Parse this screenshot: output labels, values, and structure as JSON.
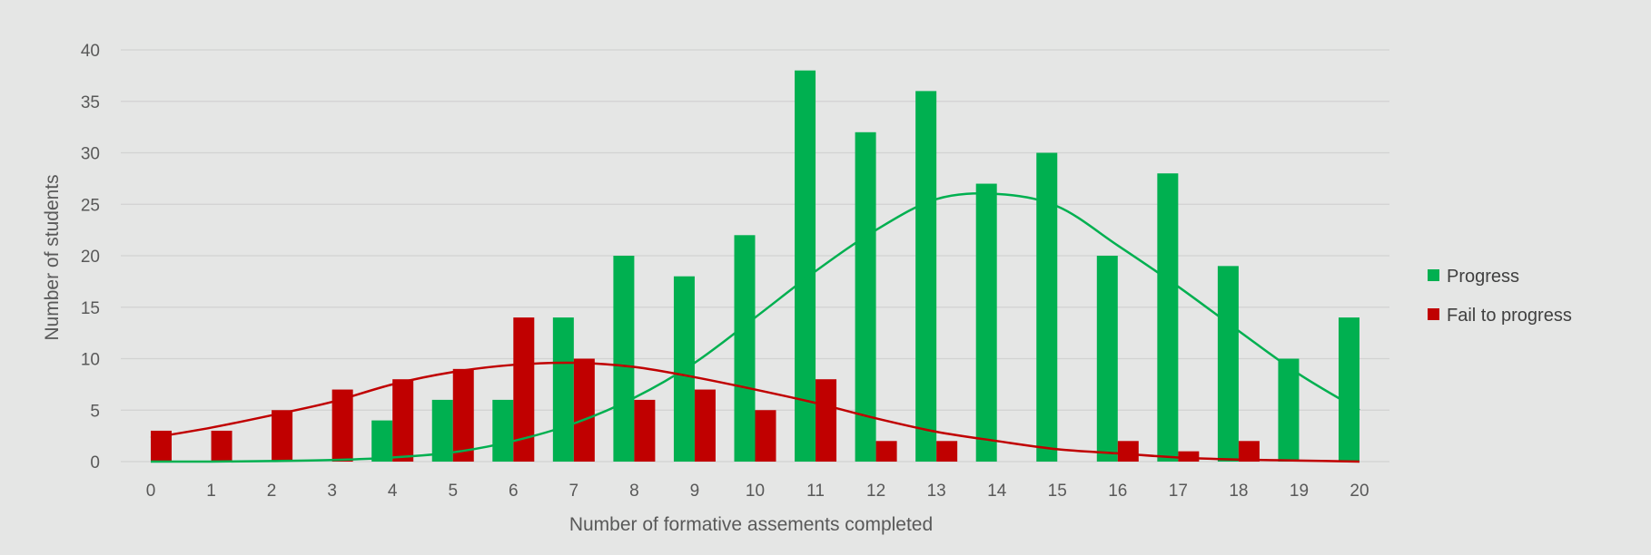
{
  "chart_data": {
    "type": "bar",
    "xlabel": "Number of formative assements completed",
    "ylabel": "Number of students",
    "categories": [
      "0",
      "1",
      "2",
      "3",
      "4",
      "5",
      "6",
      "7",
      "8",
      "9",
      "10",
      "11",
      "12",
      "13",
      "14",
      "15",
      "16",
      "17",
      "18",
      "19",
      "20"
    ],
    "ylim": [
      0,
      40
    ],
    "yticks": [
      0,
      5,
      10,
      15,
      20,
      25,
      30,
      35,
      40
    ],
    "grid": true,
    "legend_position": "right",
    "series": [
      {
        "name": "Progress",
        "color": "#00b050",
        "values": [
          0,
          0,
          0,
          0,
          4,
          6,
          6,
          14,
          20,
          18,
          22,
          38,
          32,
          36,
          27,
          30,
          20,
          28,
          19,
          10,
          14
        ]
      },
      {
        "name": "Fail to progress",
        "color": "#c00000",
        "values": [
          3,
          3,
          5,
          7,
          8,
          9,
          14,
          10,
          6,
          7,
          5,
          8,
          2,
          2,
          0,
          0,
          2,
          1,
          2,
          0,
          0
        ]
      }
    ],
    "trendlines": [
      {
        "series": "Progress",
        "color": "#00b050",
        "values": [
          0,
          0,
          0.05,
          0.15,
          0.4,
          0.9,
          2.0,
          3.7,
          6.2,
          9.6,
          14.0,
          18.5,
          22.5,
          25.5,
          26.0,
          24.8,
          21.0,
          17.0,
          12.7,
          8.5,
          5.0
        ]
      },
      {
        "series": "Fail to progress",
        "color": "#c00000",
        "values": [
          2.3,
          3.3,
          4.5,
          5.8,
          7.5,
          8.7,
          9.4,
          9.6,
          9.2,
          8.2,
          7.0,
          5.7,
          4.2,
          2.9,
          2.0,
          1.2,
          0.8,
          0.4,
          0.2,
          0.1,
          0.0
        ]
      }
    ]
  }
}
